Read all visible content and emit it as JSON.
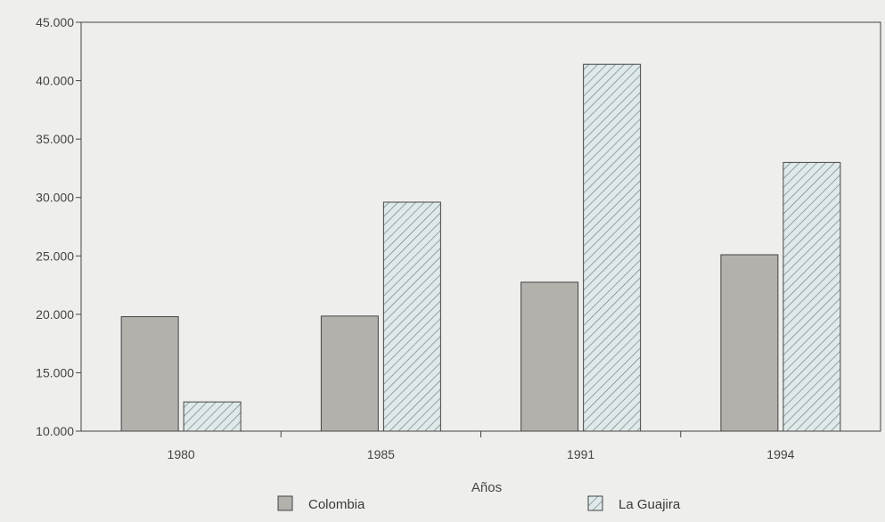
{
  "chart_data": {
    "type": "bar",
    "title": "",
    "xlabel": "Años",
    "ylabel": "",
    "categories": [
      "1980",
      "1985",
      "1991",
      "1994"
    ],
    "series": [
      {
        "name": "Colombia",
        "values": [
          19800,
          19850,
          22750,
          25100
        ]
      },
      {
        "name": "La Guajira",
        "values": [
          12500,
          29600,
          41400,
          33000
        ]
      }
    ],
    "ylim": [
      10000,
      45000
    ],
    "yticks": [
      10000,
      15000,
      20000,
      25000,
      30000,
      35000,
      40000,
      45000
    ],
    "ytick_labels": [
      "10.000",
      "15.000",
      "20.000",
      "25.000",
      "30.000",
      "35.000",
      "40.000",
      "45.000"
    ],
    "grid": false,
    "legend_position": "bottom",
    "colors": {
      "Colombia": "#b3b1ac",
      "La Guajira": "#dfe9ea",
      "hatch": "#6f8488",
      "outline": "#444444"
    }
  }
}
